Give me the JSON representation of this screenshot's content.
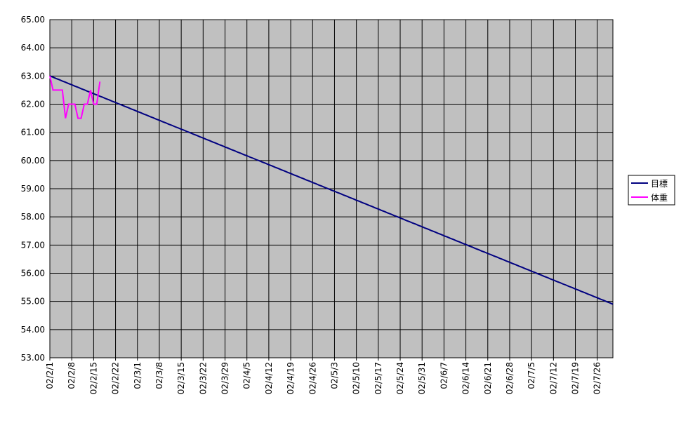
{
  "chart_data": {
    "type": "line",
    "categories": [
      "02/2/1",
      null,
      null,
      null,
      null,
      null,
      null,
      "02/2/8",
      null,
      null,
      null,
      null,
      null,
      null,
      "02/2/15",
      null,
      null,
      null,
      null,
      null,
      null,
      "02/2/22",
      null,
      null,
      null,
      null,
      null,
      null,
      "02/3/1",
      null,
      null,
      null,
      null,
      null,
      null,
      "02/3/8",
      null,
      null,
      null,
      null,
      null,
      null,
      "02/3/15",
      null,
      null,
      null,
      null,
      null,
      null,
      "02/3/22",
      null,
      null,
      null,
      null,
      null,
      null,
      "02/3/29",
      null,
      null,
      null,
      null,
      null,
      null,
      "02/4/5",
      null,
      null,
      null,
      null,
      null,
      null,
      "02/4/12",
      null,
      null,
      null,
      null,
      null,
      null,
      "02/4/19",
      null,
      null,
      null,
      null,
      null,
      null,
      "02/4/26",
      null,
      null,
      null,
      null,
      null,
      null,
      "02/5/3",
      null,
      null,
      null,
      null,
      null,
      null,
      "02/5/10",
      null,
      null,
      null,
      null,
      null,
      null,
      "02/5/17",
      null,
      null,
      null,
      null,
      null,
      null,
      "02/5/24",
      null,
      null,
      null,
      null,
      null,
      null,
      "02/5/31",
      null,
      null,
      null,
      null,
      null,
      null,
      "02/6/7",
      null,
      null,
      null,
      null,
      null,
      null,
      "02/6/14",
      null,
      null,
      null,
      null,
      null,
      null,
      "02/6/21",
      null,
      null,
      null,
      null,
      null,
      null,
      "02/6/28",
      null,
      null,
      null,
      null,
      null,
      null,
      "02/7/5",
      null,
      null,
      null,
      null,
      null,
      null,
      "02/7/12",
      null,
      null,
      null,
      null,
      null,
      null,
      "02/7/19",
      null,
      null,
      null,
      null,
      null,
      null,
      "02/7/26",
      null,
      null,
      null,
      null,
      null
    ],
    "series": [
      {
        "name": "目標",
        "color": "#000080",
        "values": [
          63.0,
          62.96,
          62.91,
          62.87,
          62.82,
          62.78,
          62.73,
          62.69,
          62.64,
          62.6,
          62.55,
          62.51,
          62.46,
          62.42,
          62.37,
          62.33,
          62.28,
          62.24,
          62.19,
          62.15,
          62.1,
          62.06,
          62.01,
          61.97,
          61.92,
          61.88,
          61.83,
          61.79,
          61.74,
          61.7,
          61.65,
          61.61,
          61.56,
          61.52,
          61.47,
          61.43,
          61.38,
          61.34,
          61.29,
          61.25,
          61.2,
          61.16,
          61.11,
          61.07,
          61.02,
          60.98,
          60.93,
          60.89,
          60.84,
          60.8,
          60.75,
          60.71,
          60.66,
          60.62,
          60.57,
          60.53,
          60.48,
          60.44,
          60.39,
          60.35,
          60.3,
          60.26,
          60.21,
          60.17,
          60.12,
          60.08,
          60.03,
          59.99,
          59.94,
          59.9,
          59.85,
          59.81,
          59.76,
          59.72,
          59.67,
          59.63,
          59.58,
          59.54,
          59.49,
          59.45,
          59.4,
          59.36,
          59.31,
          59.27,
          59.22,
          59.18,
          59.13,
          59.09,
          59.04,
          59.0,
          58.95,
          58.91,
          58.86,
          58.82,
          58.77,
          58.73,
          58.68,
          58.64,
          58.59,
          58.55,
          58.5,
          58.46,
          58.41,
          58.37,
          58.32,
          58.28,
          58.23,
          58.19,
          58.14,
          58.1,
          58.05,
          58.01,
          57.96,
          57.92,
          57.87,
          57.83,
          57.78,
          57.74,
          57.69,
          57.65,
          57.6,
          57.56,
          57.51,
          57.47,
          57.42,
          57.38,
          57.33,
          57.29,
          57.24,
          57.2,
          57.15,
          57.11,
          57.06,
          57.02,
          56.97,
          56.93,
          56.88,
          56.84,
          56.79,
          56.75,
          56.7,
          56.66,
          56.61,
          56.57,
          56.52,
          56.48,
          56.43,
          56.39,
          56.34,
          56.3,
          56.25,
          56.21,
          56.16,
          56.12,
          56.07,
          56.03,
          55.98,
          55.94,
          55.89,
          55.85,
          55.8,
          55.76,
          55.71,
          55.67,
          55.62,
          55.58,
          55.53,
          55.49,
          55.44,
          55.4,
          55.35,
          55.31,
          55.26,
          55.22,
          55.17,
          55.13,
          55.08,
          55.04,
          54.99,
          54.95,
          54.9
        ]
      },
      {
        "name": "体重",
        "color": "#ff00ff",
        "values": [
          63,
          62.5,
          62.5,
          62.5,
          62.5,
          61.5,
          62,
          62,
          62,
          61.5,
          61.5,
          62,
          62,
          62.5,
          62,
          62,
          62.8,
          null,
          null,
          null,
          null,
          null,
          null,
          null,
          null,
          null,
          null,
          null,
          null,
          null,
          null,
          null,
          null,
          null,
          null,
          null,
          null,
          null,
          null,
          null,
          null,
          null,
          null,
          null,
          null,
          null,
          null,
          null,
          null,
          null,
          null,
          null,
          null,
          null,
          null,
          null,
          null,
          null,
          null,
          null,
          null,
          null,
          null,
          null,
          null,
          null,
          null,
          null,
          null,
          null,
          null,
          null,
          null,
          null,
          null,
          null,
          null,
          null,
          null,
          null,
          null,
          null,
          null,
          null,
          null,
          null,
          null,
          null,
          null,
          null,
          null,
          null,
          null,
          null,
          null,
          null,
          null,
          null,
          null,
          null,
          null,
          null,
          null,
          null,
          null,
          null,
          null,
          null,
          null,
          null,
          null,
          null,
          null,
          null,
          null,
          null,
          null,
          null,
          null,
          null,
          null,
          null,
          null,
          null,
          null,
          null,
          null,
          null,
          null,
          null,
          null,
          null,
          null,
          null,
          null,
          null,
          null,
          null,
          null,
          null,
          null,
          null,
          null,
          null,
          null,
          null,
          null,
          null,
          null,
          null,
          null,
          null,
          null,
          null,
          null,
          null,
          null,
          null,
          null,
          null,
          null,
          null,
          null,
          null,
          null,
          null,
          null,
          null,
          null,
          null,
          null,
          null,
          null,
          null,
          null,
          null,
          null,
          null,
          null,
          null,
          null
        ]
      }
    ],
    "ylim": [
      53,
      65
    ],
    "yticks": [
      {
        "value": 53,
        "label": "53.00"
      },
      {
        "value": 54,
        "label": "54.00"
      },
      {
        "value": 55,
        "label": "55.00"
      },
      {
        "value": 56,
        "label": "56.00"
      },
      {
        "value": 57,
        "label": "57.00"
      },
      {
        "value": 58,
        "label": "58.00"
      },
      {
        "value": 59,
        "label": "59.00"
      },
      {
        "value": 60,
        "label": "60.00"
      },
      {
        "value": 61,
        "label": "61.00"
      },
      {
        "value": 62,
        "label": "62.00"
      },
      {
        "value": 63,
        "label": "63.00"
      },
      {
        "value": 64,
        "label": "64.00"
      },
      {
        "value": 65,
        "label": "65.00"
      }
    ],
    "grid": true,
    "legend": "right"
  }
}
